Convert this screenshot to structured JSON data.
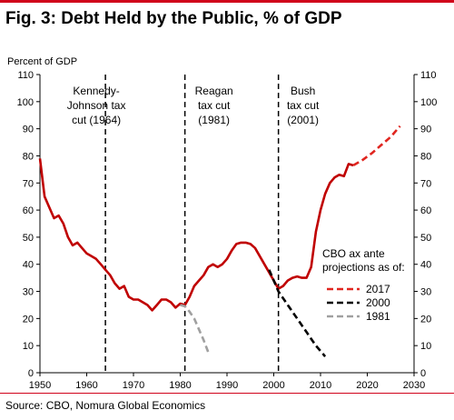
{
  "figure_title": "Fig. 3: Debt Held by the Public, % of GDP",
  "source": "Source: CBO, Nomura Global Economics",
  "colors": {
    "actual": "#c00000",
    "cbo_2017": "#e0251f",
    "cbo_2000": "#000000",
    "cbo_1981": "#a0a0a0",
    "accent_rule": "#d0021b"
  },
  "chart_data": {
    "type": "line",
    "title": "Fig. 3: Debt Held by the Public, % of GDP",
    "ylabel": "Percent of GDP",
    "xlabel": "",
    "xlim": [
      1950,
      2030
    ],
    "ylim": [
      0,
      110
    ],
    "x_ticks": [
      1950,
      1960,
      1970,
      1980,
      1990,
      2000,
      2010,
      2020,
      2030
    ],
    "y_ticks": [
      0,
      10,
      20,
      30,
      40,
      50,
      60,
      70,
      80,
      90,
      100,
      110
    ],
    "grid": false,
    "legend_title": "CBO ax ante projections as of:",
    "legend_position": "right",
    "series": [
      {
        "key": "actual",
        "style": "solid",
        "x": [
          1950,
          1951,
          1952,
          1953,
          1954,
          1955,
          1956,
          1957,
          1958,
          1959,
          1960,
          1961,
          1962,
          1963,
          1964,
          1965,
          1966,
          1967,
          1968,
          1969,
          1970,
          1971,
          1972,
          1973,
          1974,
          1975,
          1976,
          1977,
          1978,
          1979,
          1980,
          1981,
          1982,
          1983,
          1984,
          1985,
          1986,
          1987,
          1988,
          1989,
          1990,
          1991,
          1992,
          1993,
          1994,
          1995,
          1996,
          1997,
          1998,
          1999,
          2000,
          2001,
          2002,
          2003,
          2004,
          2005,
          2006,
          2007,
          2008,
          2009,
          2010,
          2011,
          2012,
          2013,
          2014,
          2015,
          2016,
          2017
        ],
        "y": [
          79,
          65,
          61,
          57,
          58,
          55,
          50,
          47,
          48,
          46,
          44,
          43,
          42,
          40,
          38,
          36,
          33,
          31,
          32,
          28,
          27,
          27,
          26,
          25,
          23,
          25,
          27,
          27,
          26,
          24,
          25.5,
          25,
          28,
          32,
          34,
          36,
          39,
          40,
          39,
          40,
          42,
          45,
          47.5,
          48,
          48,
          47.5,
          46,
          43,
          40,
          37,
          34,
          31,
          32,
          34,
          35,
          35.5,
          35,
          35,
          39,
          52,
          60,
          66,
          70,
          72,
          73,
          72.5,
          77,
          76.5
        ]
      },
      {
        "name": "2017",
        "style": "dashed",
        "x": [
          2017,
          2019,
          2021,
          2023,
          2025,
          2027
        ],
        "y": [
          76.5,
          78.5,
          81,
          84,
          87,
          91
        ]
      },
      {
        "name": "2000",
        "style": "dashed",
        "x": [
          1999,
          2001,
          2003,
          2005,
          2007,
          2009,
          2011
        ],
        "y": [
          38,
          30,
          25,
          20,
          15,
          10,
          6
        ]
      },
      {
        "name": "1981",
        "style": "dashed",
        "x": [
          1980,
          1981,
          1982,
          1983,
          1984,
          1985,
          1986
        ],
        "y": [
          25,
          24.5,
          22.5,
          20,
          16,
          12,
          7.5
        ]
      }
    ],
    "vlines": [
      {
        "x": 1964,
        "label": [
          "Kennedy-",
          "Johnson tax",
          "cut (1964)"
        ]
      },
      {
        "x": 1981,
        "label": [
          "Reagan",
          "tax cut",
          "(1981)"
        ]
      },
      {
        "x": 2001,
        "label": [
          "Bush",
          "tax cut",
          "(2001)"
        ]
      }
    ]
  }
}
